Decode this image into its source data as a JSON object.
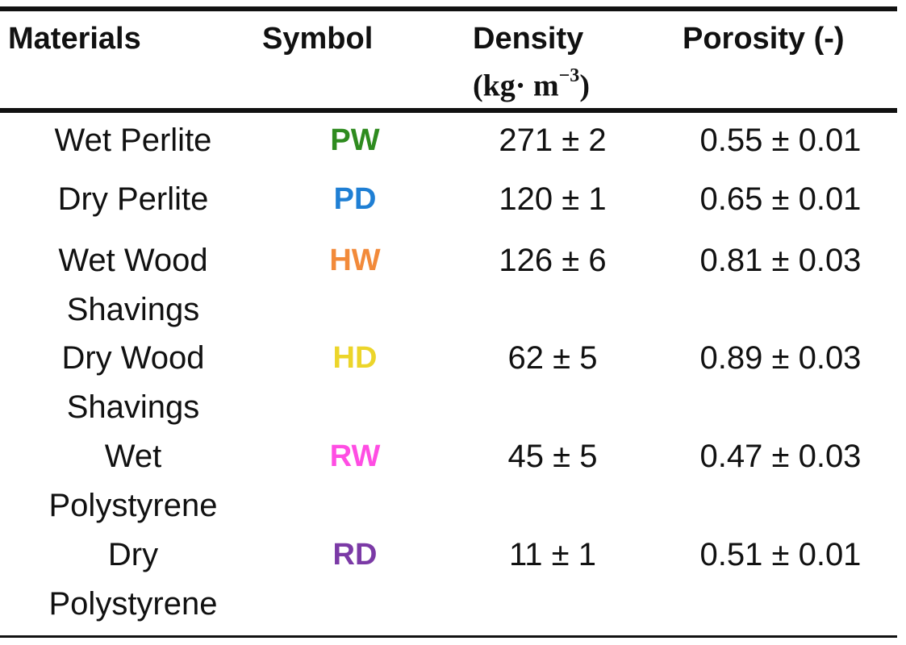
{
  "table": {
    "headers": {
      "materials": "Materials",
      "symbol": "Symbol",
      "density": "Density",
      "density_unit_base": "(kg· m",
      "density_unit_exp": "−3",
      "density_unit_close": ")",
      "porosity": "Porosity (-)"
    },
    "rows": [
      {
        "material_line1": "Wet Perlite",
        "material_line2": "",
        "symbol": "PW",
        "symbol_color": "#2e8b1f",
        "density": "271 ± 2",
        "porosity": "0.55 ± 0.01"
      },
      {
        "material_line1": "Dry Perlite",
        "material_line2": "",
        "symbol": "PD",
        "symbol_color": "#1f7fd4",
        "density": "120 ± 1",
        "porosity": "0.65 ± 0.01"
      },
      {
        "material_line1": "Wet Wood",
        "material_line2": "Shavings",
        "symbol": "HW",
        "symbol_color": "#f28a3a",
        "density": "126 ± 6",
        "porosity": "0.81 ± 0.03"
      },
      {
        "material_line1": "Dry Wood",
        "material_line2": "Shavings",
        "symbol": "HD",
        "symbol_color": "#ecd52a",
        "density": "62 ± 5",
        "porosity": "0.89 ± 0.03"
      },
      {
        "material_line1": "Wet",
        "material_line2": "Polystyrene",
        "symbol": "RW",
        "symbol_color": "#ff4de3",
        "density": "45 ± 5",
        "porosity": "0.47 ± 0.03"
      },
      {
        "material_line1": "Dry",
        "material_line2": "Polystyrene",
        "symbol": "RD",
        "symbol_color": "#7b3aa6",
        "density": "11 ± 1",
        "porosity": "0.51 ± 0.01"
      }
    ]
  }
}
